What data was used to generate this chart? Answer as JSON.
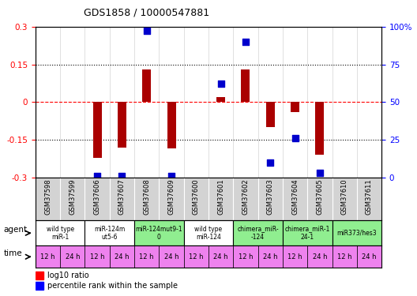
{
  "title": "GDS1858 / 10000547881",
  "samples": [
    "GSM37598",
    "GSM37599",
    "GSM37606",
    "GSM37607",
    "GSM37608",
    "GSM37609",
    "GSM37600",
    "GSM37601",
    "GSM37602",
    "GSM37603",
    "GSM37604",
    "GSM37605",
    "GSM37610",
    "GSM37611"
  ],
  "log10_ratio": [
    0.0,
    0.0,
    -0.22,
    -0.18,
    0.13,
    -0.185,
    0.0,
    0.02,
    0.13,
    -0.1,
    -0.04,
    -0.21,
    0.0,
    0.0
  ],
  "percentile_rank": [
    null,
    null,
    1,
    1,
    97,
    1,
    null,
    62,
    90,
    10,
    26,
    3,
    null,
    null
  ],
  "agent_groups": [
    {
      "label": "wild type\nmiR-1",
      "start": 0,
      "end": 2,
      "color": "#ffffff"
    },
    {
      "label": "miR-124m\nut5-6",
      "start": 2,
      "end": 4,
      "color": "#ffffff"
    },
    {
      "label": "miR-124mut9-1\n0",
      "start": 4,
      "end": 6,
      "color": "#90ee90"
    },
    {
      "label": "wild type\nmiR-124",
      "start": 6,
      "end": 8,
      "color": "#ffffff"
    },
    {
      "label": "chimera_miR-\n-124",
      "start": 8,
      "end": 10,
      "color": "#90ee90"
    },
    {
      "label": "chimera_miR-1\n24-1",
      "start": 10,
      "end": 12,
      "color": "#90ee90"
    },
    {
      "label": "miR373/hes3",
      "start": 12,
      "end": 14,
      "color": "#90ee90"
    }
  ],
  "time_labels": [
    "12 h",
    "24 h",
    "12 h",
    "24 h",
    "12 h",
    "24 h",
    "12 h",
    "24 h",
    "12 h",
    "24 h",
    "12 h",
    "24 h",
    "12 h",
    "24 h"
  ],
  "bar_color": "#aa0000",
  "dot_color": "#0000cc",
  "ylim_left": [
    -0.3,
    0.3
  ],
  "ylim_right": [
    0,
    100
  ],
  "yticks_left": [
    -0.3,
    -0.15,
    0.0,
    0.15,
    0.3
  ],
  "ytick_labels_left": [
    "-0.3",
    "-0.15",
    "0",
    "0.15",
    "0.3"
  ],
  "yticks_right": [
    0,
    25,
    50,
    75,
    100
  ],
  "ytick_labels_right": [
    "0",
    "25",
    "50",
    "75",
    "100%"
  ],
  "dot_size": 30,
  "bar_width": 0.35,
  "cell_bg": "#d3d3d3",
  "time_color": "#ee82ee",
  "agent_white": "#ffffff",
  "agent_green": "#90ee90"
}
